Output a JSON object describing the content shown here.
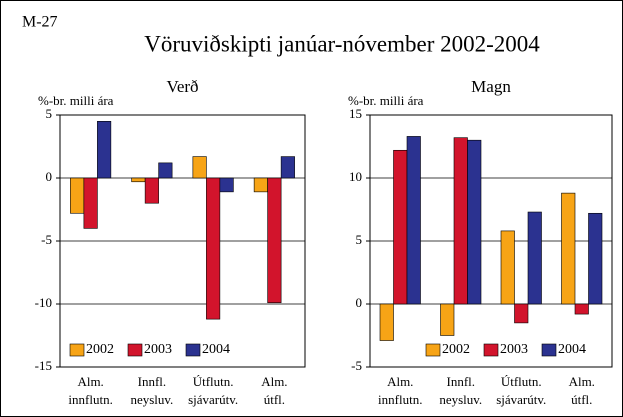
{
  "figure_label": "M-27",
  "title": "Vöruviðskipti janúar-nóvember 2002-2004",
  "chart_data": [
    {
      "type": "bar",
      "title": "Verð",
      "ylabel": "%-br. milli ára",
      "categories": [
        [
          "Alm.",
          "innflutn."
        ],
        [
          "Innfl.",
          "neysluv."
        ],
        [
          "Útflutn.",
          "sjávarútv."
        ],
        [
          "Alm.",
          "útfl."
        ]
      ],
      "series": [
        {
          "name": "2002",
          "color": "#f7a416",
          "values": [
            -2.8,
            -0.3,
            1.7,
            -1.1
          ]
        },
        {
          "name": "2003",
          "color": "#d2142c",
          "values": [
            -4.0,
            -2.0,
            -11.2,
            -9.9
          ]
        },
        {
          "name": "2004",
          "color": "#2b3290",
          "values": [
            4.5,
            1.2,
            -1.1,
            1.7
          ]
        }
      ],
      "ylim": [
        -15,
        5
      ],
      "yticks": [
        -15,
        -10,
        -5,
        0,
        5
      ],
      "grid": true,
      "legend": "lower left"
    },
    {
      "type": "bar",
      "title": "Magn",
      "ylabel": "%-br. milli ára",
      "categories": [
        [
          "Alm.",
          "innflutn."
        ],
        [
          "Innfl.",
          "neysluv."
        ],
        [
          "Útflutn.",
          "sjávarútv."
        ],
        [
          "Alm.",
          "útfl."
        ]
      ],
      "series": [
        {
          "name": "2002",
          "color": "#f7a416",
          "values": [
            -2.9,
            -2.5,
            5.8,
            8.8
          ]
        },
        {
          "name": "2003",
          "color": "#d2142c",
          "values": [
            12.2,
            13.2,
            -1.5,
            -0.8
          ]
        },
        {
          "name": "2004",
          "color": "#2b3290",
          "values": [
            13.3,
            13.0,
            7.3,
            7.2
          ]
        }
      ],
      "ylim": [
        -5,
        15
      ],
      "yticks": [
        -5,
        0,
        5,
        10,
        15
      ],
      "grid": true,
      "legend": "lower right"
    }
  ]
}
